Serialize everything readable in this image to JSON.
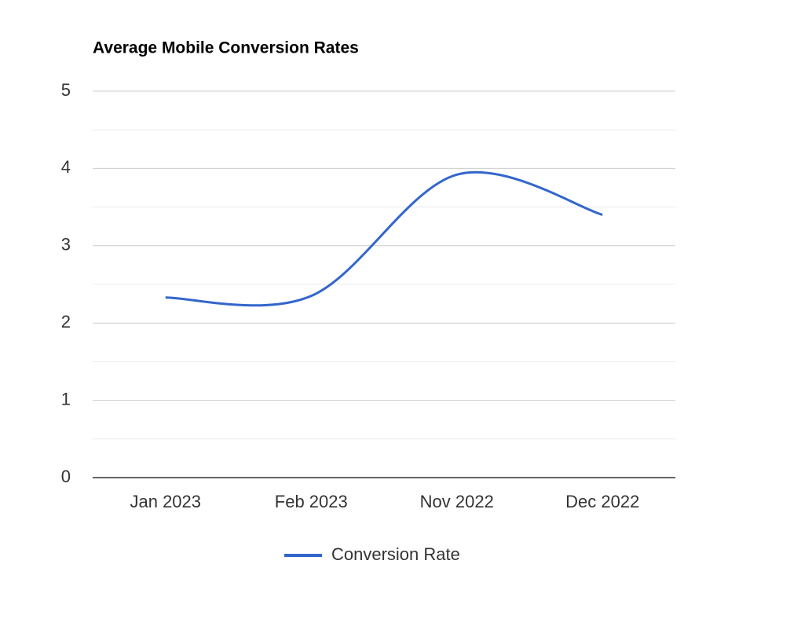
{
  "chart_data": {
    "type": "line",
    "title": "Average Mobile Conversion Rates",
    "categories": [
      "Jan 2023",
      "Feb 2023",
      "Nov 2022",
      "Dec 2022"
    ],
    "series": [
      {
        "name": "Conversion Rate",
        "color": "#3366cc",
        "values": [
          2.33,
          2.35,
          3.92,
          3.4
        ]
      }
    ],
    "ylim": [
      0,
      5
    ],
    "yticks": [
      0,
      1,
      2,
      3,
      4,
      5
    ],
    "grid": true,
    "smooth": true,
    "legend": "bottom"
  }
}
